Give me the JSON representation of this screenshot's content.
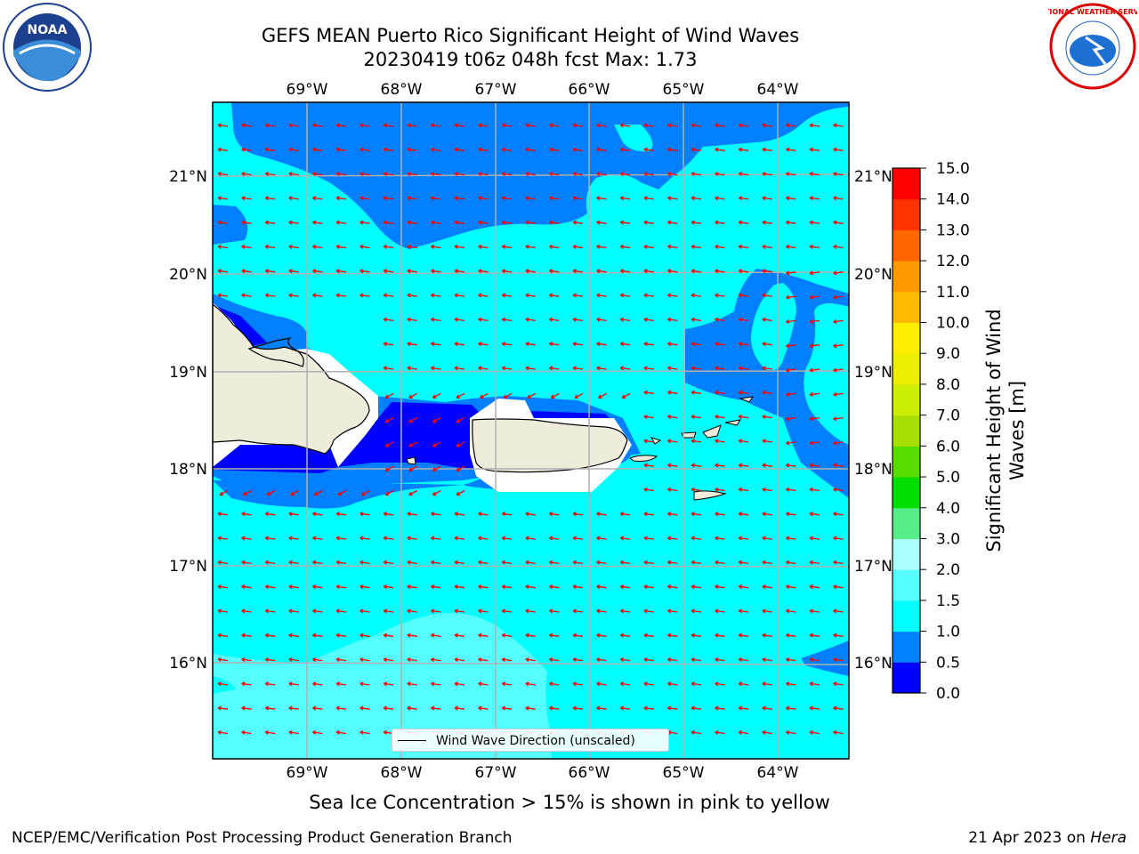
{
  "header": {
    "title_line1": "GEFS MEAN Puerto Rico Significant Height of Wind Waves",
    "title_line2": "20230419 t06z 048h fcst   Max: 1.73"
  },
  "map": {
    "lon_labels": [
      "69°W",
      "68°W",
      "67°W",
      "66°W",
      "65°W",
      "64°W"
    ],
    "lat_labels": [
      "21°N",
      "20°N",
      "19°N",
      "18°N",
      "17°N",
      "16°N"
    ],
    "land_color": "#efecdc",
    "arrow_color": "#ff0000",
    "grid_color": "#b0b0b0",
    "legend_label": "Wind Wave Direction (unscaled)"
  },
  "colorbar": {
    "title_line1": "Significant Height of Wind",
    "title_line2": "Waves [m]",
    "ticks": [
      "15.0",
      "14.0",
      "13.0",
      "12.0",
      "11.0",
      "10.0",
      "9.0",
      "8.0",
      "7.0",
      "6.0",
      "5.0",
      "4.0",
      "3.0",
      "2.0",
      "1.5",
      "1.0",
      "0.5",
      "0.0"
    ],
    "bins_bottom_to_top": [
      {
        "range": "0.0-0.5",
        "color": "#0000ff"
      },
      {
        "range": "0.5-1.0",
        "color": "#0080ff"
      },
      {
        "range": "1.0-1.5",
        "color": "#00ffff"
      },
      {
        "range": "1.5-2.0",
        "color": "#55ffff"
      },
      {
        "range": "2.0-3.0",
        "color": "#aaffff"
      },
      {
        "range": "3.0-4.0",
        "color": "#55ee88"
      },
      {
        "range": "4.0-5.0",
        "color": "#00dd00"
      },
      {
        "range": "5.0-6.0",
        "color": "#55dd00"
      },
      {
        "range": "6.0-7.0",
        "color": "#aadd00"
      },
      {
        "range": "7.0-8.0",
        "color": "#ccee00"
      },
      {
        "range": "8.0-9.0",
        "color": "#eeee00"
      },
      {
        "range": "9.0-10.0",
        "color": "#ffee00"
      },
      {
        "range": "10.0-11.0",
        "color": "#ffbb00"
      },
      {
        "range": "11.0-12.0",
        "color": "#ff9900"
      },
      {
        "range": "12.0-13.0",
        "color": "#ff6600"
      },
      {
        "range": "13.0-14.0",
        "color": "#ff3300"
      },
      {
        "range": "14.0-15.0",
        "color": "#ff0000"
      }
    ]
  },
  "subtitle": "Sea Ice Concentration > 15% is shown in pink to yellow",
  "footer": {
    "left": "NCEP/EMC/Verification Post Processing Product Generation Branch",
    "right_date": "21 Apr 2023 on ",
    "right_host": "Hera"
  },
  "logos": {
    "noaa_text": "NOAA",
    "nws_text": "NATIONAL WEATHER SERVICE"
  }
}
